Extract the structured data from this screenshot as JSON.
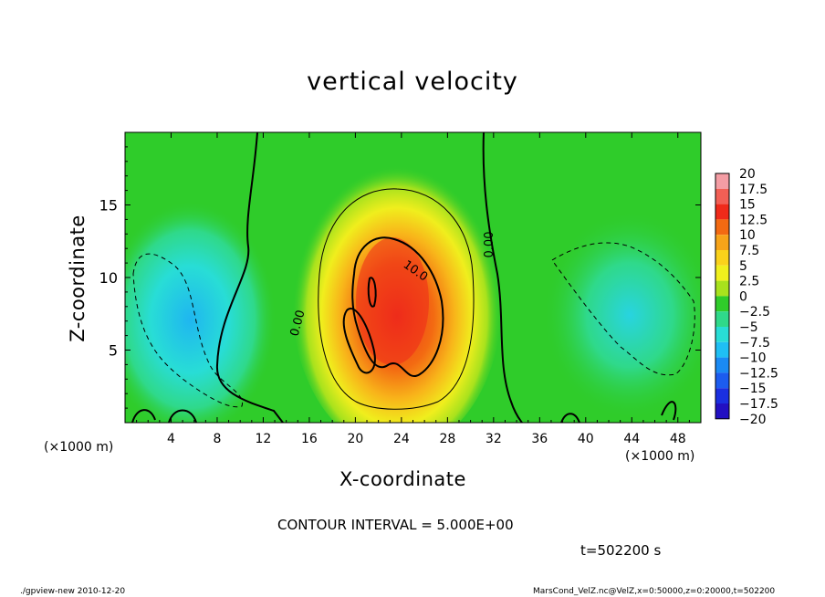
{
  "page": {
    "title": "vertical velocity",
    "contour_interval": "CONTOUR INTERVAL = 5.000E+00",
    "time": "t=502200 s",
    "footer_left": "./gpview-new  2010-12-20",
    "footer_right": "MarsCond_VelZ.nc@VelZ,x=0:50000,z=0:20000,t=502200",
    "x_unit_left": "(×1000 m)",
    "x_unit_right": "(×1000 m)"
  },
  "chart_data": {
    "type": "heatmap",
    "title": "vertical velocity",
    "xlabel": "X-coordinate",
    "ylabel": "Z-coordinate",
    "xlim": [
      0,
      50
    ],
    "ylim": [
      0,
      20
    ],
    "x_ticks": [
      4,
      8,
      12,
      16,
      20,
      24,
      28,
      32,
      36,
      40,
      44,
      48
    ],
    "y_ticks": [
      5,
      10,
      15
    ],
    "colorbar": {
      "levels": [
        "20",
        "17.5",
        "15",
        "12.5",
        "10",
        "7.5",
        "5",
        "2.5",
        "0",
        "−2.5",
        "−5",
        "−7.5",
        "−10",
        "−12.5",
        "−15",
        "−17.5",
        "−20"
      ],
      "colors": [
        "#f49da4",
        "#f25f55",
        "#ef2a1a",
        "#f36a12",
        "#f7a419",
        "#fad21b",
        "#f0f01d",
        "#a8e21d",
        "#2fcc2a",
        "#2fd98a",
        "#28ddd6",
        "#1fbff4",
        "#1a8af4",
        "#1c5cef",
        "#1a2fe0",
        "#2210c2",
        "#5b10a8"
      ]
    },
    "features": [
      {
        "kind": "updraft",
        "x_center": 24,
        "z_center": 8,
        "peak": 15,
        "width_km": 12,
        "height_km": 14
      },
      {
        "kind": "downdraft",
        "x_center": 7,
        "z_center": 7,
        "peak": -7.5
      },
      {
        "kind": "downdraft",
        "x_center": 44,
        "z_center": 7,
        "peak": -5
      }
    ],
    "contour_labels": [
      "10.0",
      "0.00",
      "0.00"
    ],
    "background_value": 0.5
  }
}
